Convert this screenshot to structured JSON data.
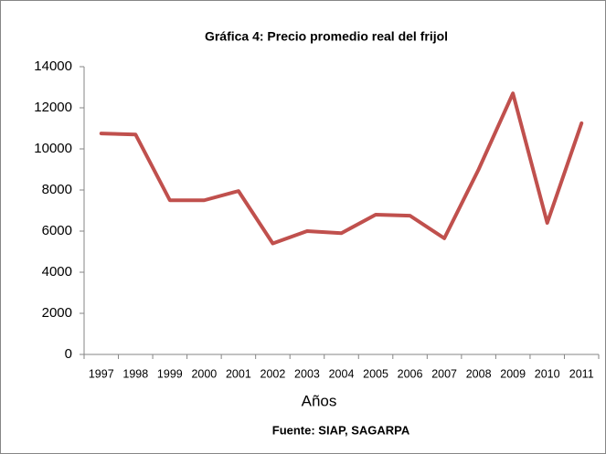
{
  "chart_data": {
    "type": "line",
    "title": "Gráfica 4: Precio promedio real del frijol",
    "x_label": "Años",
    "source": "Fuente: SIAP, SAGARPA",
    "categories": [
      "1997",
      "1998",
      "1999",
      "2000",
      "2001",
      "2002",
      "2003",
      "2004",
      "2005",
      "2006",
      "2007",
      "2008",
      "2009",
      "2010",
      "2011"
    ],
    "series": [
      {
        "name": "Precio promedio real",
        "color": "#c0504d",
        "values": [
          10750,
          10700,
          7500,
          7500,
          7950,
          5400,
          6000,
          5900,
          6800,
          6750,
          5650,
          9000,
          12700,
          6400,
          11250
        ]
      }
    ],
    "ylim": [
      0,
      14000
    ],
    "yticks": [
      0,
      2000,
      4000,
      6000,
      8000,
      10000,
      12000,
      14000
    ],
    "legend": false,
    "grid": false
  }
}
